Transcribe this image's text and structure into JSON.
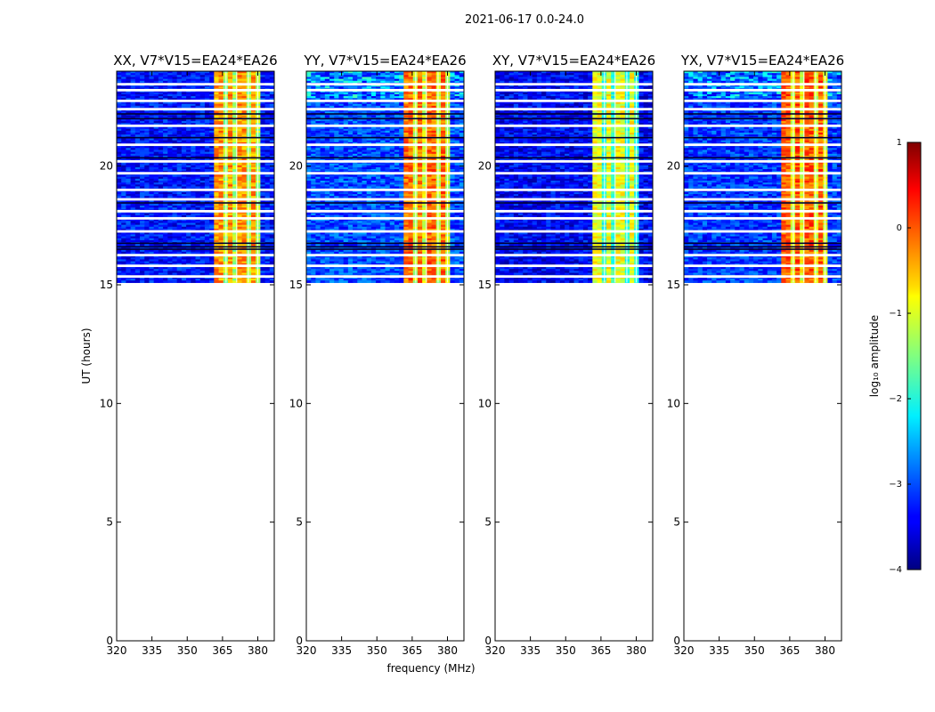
{
  "chart_data": {
    "type": "heatmap",
    "suptitle": "2021-06-17 0.0-24.0",
    "xlabel": "frequency (MHz)",
    "ylabel": "UT (hours)",
    "xlim": [
      320,
      387
    ],
    "ylim": [
      0,
      24
    ],
    "xticks": [
      "320",
      "335",
      "350",
      "365",
      "380"
    ],
    "yticks": [
      "0",
      "5",
      "10",
      "15",
      "20"
    ],
    "data_start_hour": 15.1,
    "high_band_mhz": [
      362,
      382
    ],
    "panels": [
      {
        "title": "XX, V7*V15=EA24*EA26",
        "base_log_amplitude": -3.3,
        "band_log_amplitude": -0.6
      },
      {
        "title": "YY, V7*V15=EA24*EA26",
        "base_log_amplitude": -3.0,
        "band_log_amplitude": -0.4
      },
      {
        "title": "XY, V7*V15=EA24*EA26",
        "base_log_amplitude": -3.4,
        "band_log_amplitude": -1.2
      },
      {
        "title": "YX, V7*V15=EA24*EA26",
        "base_log_amplitude": -3.1,
        "band_log_amplitude": -0.3
      }
    ],
    "colorbar": {
      "label": "log₁₀ amplitude",
      "min": -4,
      "max": 1,
      "ticks": [
        "1",
        "0",
        "−1",
        "−2",
        "−3",
        "−4"
      ],
      "colormap": "jet"
    }
  }
}
